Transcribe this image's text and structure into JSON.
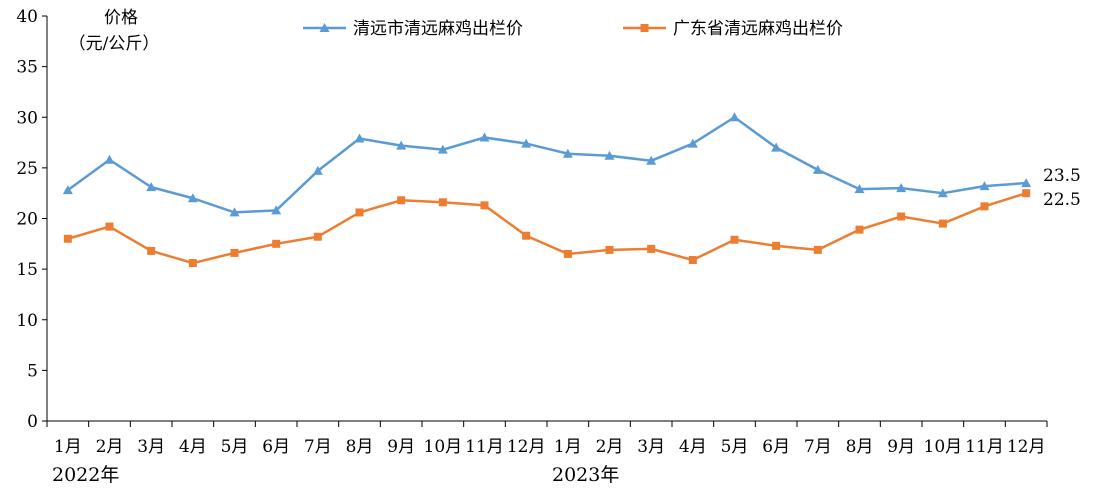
{
  "chart_data": {
    "type": "line",
    "ylabel": "价格",
    "yunit": "（元/公斤）",
    "ylim": [
      0,
      40
    ],
    "ytick_step": 5,
    "ytick_labels": [
      "0",
      "5",
      "10",
      "15",
      "20",
      "25",
      "30",
      "35",
      "40"
    ],
    "grid": false,
    "legend_position": "top",
    "categories": [
      "1月",
      "2月",
      "3月",
      "4月",
      "5月",
      "6月",
      "7月",
      "8月",
      "9月",
      "10月",
      "11月",
      "12月",
      "1月",
      "2月",
      "3月",
      "4月",
      "5月",
      "6月",
      "7月",
      "8月",
      "9月",
      "10月",
      "11月",
      "12月"
    ],
    "year_groups": [
      {
        "label": "2022年",
        "start_index": 0
      },
      {
        "label": "2023年",
        "start_index": 12
      }
    ],
    "series": [
      {
        "name": "清远市清远麻鸡出栏价",
        "color": "#5b9bd5",
        "marker": "triangle",
        "values": [
          22.8,
          25.8,
          23.1,
          22.0,
          20.6,
          20.8,
          24.7,
          27.9,
          27.2,
          26.8,
          28.0,
          27.4,
          26.4,
          26.2,
          25.7,
          27.4,
          30.0,
          27.0,
          24.8,
          22.9,
          23.0,
          22.5,
          23.2,
          23.5
        ],
        "end_label": "23.5"
      },
      {
        "name": "广东省清远麻鸡出栏价",
        "color": "#ed7d31",
        "marker": "square",
        "values": [
          18.0,
          19.2,
          16.8,
          15.6,
          16.6,
          17.5,
          18.2,
          20.6,
          21.8,
          21.6,
          21.3,
          18.3,
          16.5,
          16.9,
          17.0,
          15.9,
          17.9,
          17.3,
          16.9,
          18.9,
          20.2,
          19.5,
          21.2,
          22.5
        ],
        "end_label": "22.5"
      }
    ]
  }
}
